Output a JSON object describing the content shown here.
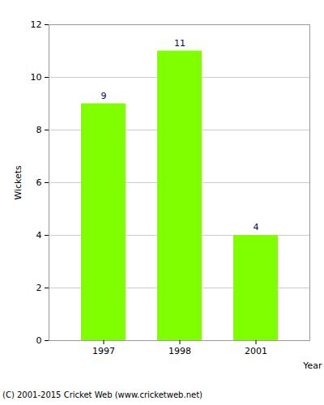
{
  "chart_data": {
    "type": "bar",
    "categories": [
      "1997",
      "1998",
      "2001"
    ],
    "values": [
      9,
      11,
      4
    ],
    "color": "#80ff00",
    "xlabel": "Year",
    "ylabel": "Wickets",
    "ylim": [
      0,
      12
    ],
    "yticks": [
      0,
      2,
      4,
      6,
      8,
      10,
      12
    ],
    "grid": true,
    "data_labels": true,
    "caption": "(C) 2001-2015 Cricket Web (www.cricketweb.net)"
  }
}
